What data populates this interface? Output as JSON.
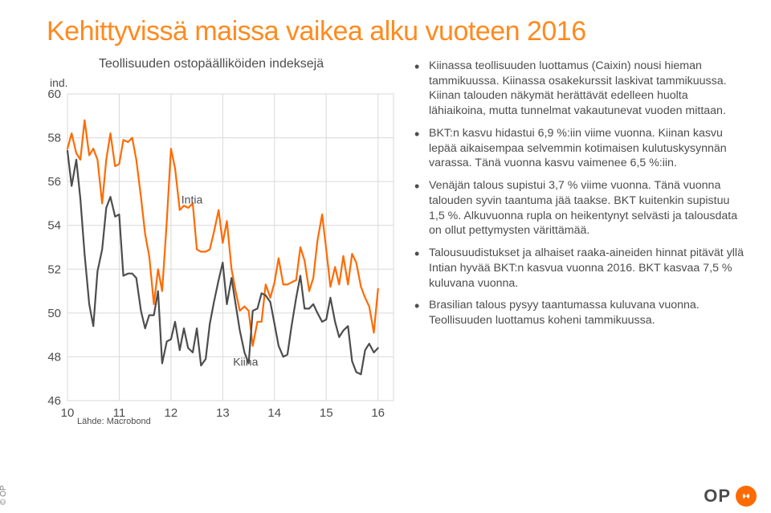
{
  "title": "Kehittyvissä maissa vaikea alku vuoteen 2016",
  "chart": {
    "type": "line",
    "subtitle": "Teollisuuden ostopäälliköiden indeksejä",
    "unit_label": "ind.",
    "source": "Lähde: Macrobond",
    "ylim": [
      46,
      60
    ],
    "ytick_step": 2,
    "yticks": [
      46,
      48,
      50,
      52,
      54,
      56,
      58,
      60
    ],
    "xlim": [
      2010,
      2016.3
    ],
    "xticks": [
      2010,
      2011,
      2012,
      2013,
      2014,
      2015,
      2016
    ],
    "xtick_labels": [
      "10",
      "11",
      "12",
      "13",
      "14",
      "15",
      "16"
    ],
    "grid_color": "#d9d9d9",
    "background_color": "#ffffff",
    "label_fontsize": 15,
    "title_fontsize": 16,
    "series": [
      {
        "name": "Intia",
        "label": "Intia",
        "label_pos": {
          "x": 2012.2,
          "y": 55.0
        },
        "color": "#ff6a00",
        "line_width": 2.2,
        "data": [
          [
            2010.0,
            57.5
          ],
          [
            2010.08,
            58.2
          ],
          [
            2010.17,
            57.3
          ],
          [
            2010.25,
            57.0
          ],
          [
            2010.33,
            58.8
          ],
          [
            2010.42,
            57.2
          ],
          [
            2010.5,
            57.5
          ],
          [
            2010.58,
            57.0
          ],
          [
            2010.67,
            55.0
          ],
          [
            2010.75,
            57.0
          ],
          [
            2010.83,
            58.2
          ],
          [
            2010.92,
            56.7
          ],
          [
            2011.0,
            56.8
          ],
          [
            2011.08,
            57.9
          ],
          [
            2011.17,
            57.8
          ],
          [
            2011.25,
            58.0
          ],
          [
            2011.33,
            57.0
          ],
          [
            2011.42,
            55.3
          ],
          [
            2011.5,
            53.6
          ],
          [
            2011.58,
            52.6
          ],
          [
            2011.67,
            50.4
          ],
          [
            2011.75,
            52.0
          ],
          [
            2011.83,
            51.0
          ],
          [
            2011.92,
            54.2
          ],
          [
            2012.0,
            57.5
          ],
          [
            2012.08,
            56.6
          ],
          [
            2012.17,
            54.7
          ],
          [
            2012.25,
            54.9
          ],
          [
            2012.33,
            54.8
          ],
          [
            2012.42,
            55.0
          ],
          [
            2012.5,
            52.9
          ],
          [
            2012.58,
            52.8
          ],
          [
            2012.67,
            52.8
          ],
          [
            2012.75,
            52.9
          ],
          [
            2012.83,
            53.7
          ],
          [
            2012.92,
            54.7
          ],
          [
            2013.0,
            53.2
          ],
          [
            2013.08,
            54.2
          ],
          [
            2013.17,
            52.0
          ],
          [
            2013.25,
            51.0
          ],
          [
            2013.33,
            50.1
          ],
          [
            2013.42,
            50.3
          ],
          [
            2013.5,
            50.1
          ],
          [
            2013.58,
            48.5
          ],
          [
            2013.67,
            49.6
          ],
          [
            2013.75,
            49.6
          ],
          [
            2013.83,
            51.3
          ],
          [
            2013.92,
            50.7
          ],
          [
            2014.0,
            51.4
          ],
          [
            2014.08,
            52.5
          ],
          [
            2014.17,
            51.3
          ],
          [
            2014.25,
            51.3
          ],
          [
            2014.33,
            51.4
          ],
          [
            2014.42,
            51.5
          ],
          [
            2014.5,
            53.0
          ],
          [
            2014.58,
            52.4
          ],
          [
            2014.67,
            51.0
          ],
          [
            2014.75,
            51.6
          ],
          [
            2014.83,
            53.3
          ],
          [
            2014.92,
            54.5
          ],
          [
            2015.0,
            52.9
          ],
          [
            2015.08,
            51.2
          ],
          [
            2015.17,
            52.1
          ],
          [
            2015.25,
            51.3
          ],
          [
            2015.33,
            52.6
          ],
          [
            2015.42,
            51.3
          ],
          [
            2015.5,
            52.7
          ],
          [
            2015.58,
            52.3
          ],
          [
            2015.67,
            51.2
          ],
          [
            2015.75,
            50.7
          ],
          [
            2015.83,
            50.3
          ],
          [
            2015.92,
            49.1
          ],
          [
            2016.0,
            51.1
          ]
        ]
      },
      {
        "name": "Kiina",
        "label": "Kiina",
        "label_pos": {
          "x": 2013.2,
          "y": 47.6
        },
        "color": "#4d4d4d",
        "line_width": 2.2,
        "data": [
          [
            2010.0,
            57.4
          ],
          [
            2010.08,
            55.8
          ],
          [
            2010.17,
            57.0
          ],
          [
            2010.25,
            55.2
          ],
          [
            2010.33,
            52.7
          ],
          [
            2010.42,
            50.4
          ],
          [
            2010.5,
            49.4
          ],
          [
            2010.58,
            51.9
          ],
          [
            2010.67,
            52.9
          ],
          [
            2010.75,
            54.8
          ],
          [
            2010.83,
            55.3
          ],
          [
            2010.92,
            54.4
          ],
          [
            2011.0,
            54.5
          ],
          [
            2011.08,
            51.7
          ],
          [
            2011.17,
            51.8
          ],
          [
            2011.25,
            51.8
          ],
          [
            2011.33,
            51.6
          ],
          [
            2011.42,
            50.1
          ],
          [
            2011.5,
            49.3
          ],
          [
            2011.58,
            49.9
          ],
          [
            2011.67,
            49.9
          ],
          [
            2011.75,
            51.0
          ],
          [
            2011.83,
            47.7
          ],
          [
            2011.92,
            48.7
          ],
          [
            2012.0,
            48.8
          ],
          [
            2012.08,
            49.6
          ],
          [
            2012.17,
            48.3
          ],
          [
            2012.25,
            49.3
          ],
          [
            2012.33,
            48.4
          ],
          [
            2012.42,
            48.2
          ],
          [
            2012.5,
            49.3
          ],
          [
            2012.58,
            47.6
          ],
          [
            2012.67,
            47.9
          ],
          [
            2012.75,
            49.5
          ],
          [
            2012.83,
            50.5
          ],
          [
            2012.92,
            51.5
          ],
          [
            2013.0,
            52.3
          ],
          [
            2013.08,
            50.4
          ],
          [
            2013.17,
            51.6
          ],
          [
            2013.25,
            50.4
          ],
          [
            2013.33,
            49.2
          ],
          [
            2013.42,
            48.2
          ],
          [
            2013.5,
            47.7
          ],
          [
            2013.58,
            50.1
          ],
          [
            2013.67,
            50.2
          ],
          [
            2013.75,
            50.9
          ],
          [
            2013.83,
            50.8
          ],
          [
            2013.92,
            50.5
          ],
          [
            2014.0,
            49.5
          ],
          [
            2014.08,
            48.5
          ],
          [
            2014.17,
            48.0
          ],
          [
            2014.25,
            48.1
          ],
          [
            2014.33,
            49.4
          ],
          [
            2014.42,
            50.7
          ],
          [
            2014.5,
            51.7
          ],
          [
            2014.58,
            50.2
          ],
          [
            2014.67,
            50.2
          ],
          [
            2014.75,
            50.4
          ],
          [
            2014.83,
            50.0
          ],
          [
            2014.92,
            49.6
          ],
          [
            2015.0,
            49.7
          ],
          [
            2015.08,
            50.7
          ],
          [
            2015.17,
            49.6
          ],
          [
            2015.25,
            48.9
          ],
          [
            2015.33,
            49.2
          ],
          [
            2015.42,
            49.4
          ],
          [
            2015.5,
            47.8
          ],
          [
            2015.58,
            47.3
          ],
          [
            2015.67,
            47.2
          ],
          [
            2015.75,
            48.3
          ],
          [
            2015.83,
            48.6
          ],
          [
            2015.92,
            48.2
          ],
          [
            2016.0,
            48.4
          ]
        ]
      }
    ]
  },
  "bullets": [
    "Kiinassa teollisuuden luottamus (Caixin) nousi hieman tammikuussa. Kiinassa osakekurssit laskivat tammikuussa. Kiinan talouden näkymät herättävät edelleen huolta lähiaikoina, mutta tunnelmat vakautunevat vuoden mittaan.",
    "BKT:n kasvu hidastui 6,9 %:iin viime vuonna. Kiinan kasvu lepää aikaisempaa selvemmin kotimaisen kulutuskysynnän varassa. Tänä vuonna kasvu vaimenee 6,5 %:iin.",
    "Venäjän talous supistui 3,7 % viime vuonna. Tänä vuonna talouden syvin taantuma jää taakse. BKT kuitenkin supistuu 1,5 %. Alkuvuonna rupla on heikentynyt selvästi ja talousdata on ollut pettymysten värittämää.",
    "Talousuudistukset ja alhaiset raaka-aineiden hinnat pitävät yllä Intian hyvää BKT:n kasvua vuonna 2016. BKT kasvaa 7,5 % kuluvana vuonna.",
    "Brasilian talous pysyy taantumassa kuluvana vuonna. Teollisuuden luottamus koheni tammikuussa."
  ],
  "footer": {
    "copyright": "© OP",
    "logo_text": "OP"
  },
  "colors": {
    "title": "#ff8a1e",
    "text": "#4d4d4d",
    "accent": "#ff6a00",
    "background": "#ffffff"
  }
}
